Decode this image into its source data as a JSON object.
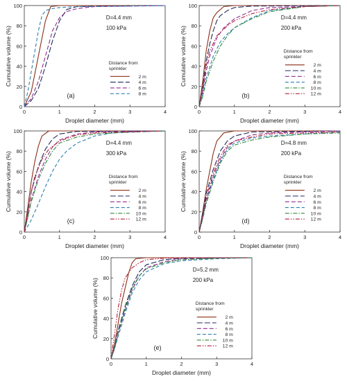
{
  "colors": {
    "2 m": "#8b2e16",
    "4 m": "#1f2a5c",
    "6 m": "#8e2a8c",
    "8 m": "#2a7fae",
    "10 m": "#2f8a3a",
    "12 m": "#b01d3a",
    "axis": "#333333"
  },
  "legend_title_lines": [
    "Distance from",
    "sprinkler"
  ],
  "chart_data": [
    {
      "type": "line",
      "panel": "(a)",
      "annotation_line1": "D=4.4 mm",
      "annotation_line2": "100 kPa",
      "xlabel": "Droplet diameter (mm)",
      "ylabel": "Cumulative volume (%)",
      "xlim": [
        0,
        4
      ],
      "ylim": [
        0,
        100
      ],
      "xticks": [
        "0",
        "1",
        "2",
        "3",
        "4"
      ],
      "yticks": [
        "0",
        "20",
        "40",
        "60",
        "80",
        "100"
      ],
      "legend_position": "lower-right",
      "series": [
        {
          "name": "2 m",
          "x": [
            0,
            0.2,
            0.4,
            0.6,
            0.75,
            1.0,
            4
          ],
          "y": [
            0,
            15,
            50,
            85,
            99,
            100,
            100
          ]
        },
        {
          "name": "4 m",
          "x": [
            0,
            0.2,
            0.4,
            0.6,
            0.8,
            1.0,
            1.2,
            1.5,
            4
          ],
          "y": [
            0,
            6,
            18,
            40,
            65,
            85,
            96,
            99,
            100
          ]
        },
        {
          "name": "6 m",
          "x": [
            0,
            0.2,
            0.4,
            0.6,
            0.8,
            1.0,
            1.2,
            1.5,
            2.0,
            4
          ],
          "y": [
            0,
            8,
            25,
            50,
            75,
            88,
            94,
            97,
            99,
            100
          ]
        },
        {
          "name": "8 m",
          "x": [
            0,
            0.1,
            0.25,
            0.4,
            0.5,
            0.6,
            0.8,
            1.0,
            1.5,
            4
          ],
          "y": [
            0,
            15,
            45,
            75,
            90,
            95,
            97,
            98,
            99,
            100
          ]
        }
      ]
    },
    {
      "type": "line",
      "panel": "(b)",
      "annotation_line1": "D=4.4 mm",
      "annotation_line2": "200 kPa",
      "xlabel": "Droplet diameter (mm)",
      "ylabel": "Cumulative volume (%)",
      "xlim": [
        0,
        4
      ],
      "ylim": [
        0,
        100
      ],
      "xticks": [
        "0",
        "1",
        "2",
        "3",
        "4"
      ],
      "yticks": [
        "0",
        "20",
        "40",
        "60",
        "80",
        "100"
      ],
      "legend_position": "lower-right",
      "series": [
        {
          "name": "2 m",
          "x": [
            0,
            0.1,
            0.2,
            0.3,
            0.4,
            0.5,
            0.7,
            1.0,
            4
          ],
          "y": [
            0,
            25,
            55,
            75,
            88,
            93,
            99,
            100,
            100
          ]
        },
        {
          "name": "4 m",
          "x": [
            0,
            0.1,
            0.2,
            0.3,
            0.4,
            0.5,
            0.6,
            0.8,
            1.0,
            1.5,
            4
          ],
          "y": [
            0,
            20,
            45,
            62,
            75,
            85,
            90,
            95,
            98,
            99.5,
            100
          ]
        },
        {
          "name": "6 m",
          "x": [
            0,
            0.1,
            0.2,
            0.3,
            0.5,
            0.7,
            1.0,
            1.5,
            2.0,
            4
          ],
          "y": [
            0,
            15,
            35,
            50,
            68,
            78,
            87,
            95,
            98,
            100
          ]
        },
        {
          "name": "8 m",
          "x": [
            0,
            0.1,
            0.2,
            0.4,
            0.6,
            0.8,
            1.0,
            1.5,
            2.0,
            3.0,
            4
          ],
          "y": [
            0,
            12,
            28,
            50,
            64,
            72,
            78,
            88,
            95,
            99,
            100
          ]
        },
        {
          "name": "10 m",
          "x": [
            0,
            0.1,
            0.2,
            0.4,
            0.6,
            0.8,
            1.0,
            1.5,
            2.0,
            3.0,
            4
          ],
          "y": [
            0,
            10,
            25,
            45,
            60,
            70,
            78,
            87,
            94,
            99,
            100
          ]
        },
        {
          "name": "12 m",
          "x": [
            0,
            0.1,
            0.2,
            0.3,
            0.5,
            0.8,
            1.0,
            1.5,
            2.0,
            3.0,
            4
          ],
          "y": [
            0,
            18,
            40,
            55,
            70,
            80,
            85,
            92,
            96,
            99,
            100
          ]
        }
      ]
    },
    {
      "type": "line",
      "panel": "(c)",
      "annotation_line1": "D=4.4 mm",
      "annotation_line2": "300 kPa",
      "xlabel": "Droplet diameter (mm)",
      "ylabel": "Cumulative volume (%)",
      "xlim": [
        0,
        4
      ],
      "ylim": [
        0,
        100
      ],
      "xticks": [
        "0",
        "1",
        "2",
        "3",
        "4"
      ],
      "yticks": [
        "0",
        "20",
        "40",
        "60",
        "80",
        "100"
      ],
      "legend_position": "lower-right",
      "series": [
        {
          "name": "2 m",
          "x": [
            0,
            0.1,
            0.2,
            0.3,
            0.4,
            0.5,
            0.7,
            4
          ],
          "y": [
            0,
            25,
            50,
            70,
            85,
            95,
            100,
            100
          ]
        },
        {
          "name": "4 m",
          "x": [
            0,
            0.1,
            0.2,
            0.4,
            0.6,
            0.8,
            1.0,
            1.5,
            4
          ],
          "y": [
            0,
            20,
            40,
            65,
            82,
            92,
            97,
            99.5,
            100
          ]
        },
        {
          "name": "6 m",
          "x": [
            0,
            0.1,
            0.2,
            0.4,
            0.6,
            0.8,
            1.0,
            1.5,
            2.0,
            4
          ],
          "y": [
            0,
            15,
            32,
            55,
            72,
            84,
            91,
            97,
            99,
            100
          ]
        },
        {
          "name": "8 m",
          "x": [
            0,
            0.2,
            0.4,
            0.6,
            0.8,
            1.0,
            1.2,
            1.5,
            2.0,
            2.5,
            4
          ],
          "y": [
            0,
            12,
            28,
            45,
            60,
            72,
            80,
            88,
            95,
            98,
            100
          ]
        },
        {
          "name": "10 m",
          "x": [
            0,
            0.1,
            0.2,
            0.4,
            0.6,
            0.8,
            1.0,
            1.5,
            2.0,
            3.0,
            4
          ],
          "y": [
            0,
            15,
            30,
            52,
            68,
            80,
            88,
            94,
            97,
            99,
            100
          ]
        },
        {
          "name": "12 m",
          "x": [
            0,
            0.1,
            0.2,
            0.3,
            0.5,
            0.7,
            1.0,
            1.5,
            2.0,
            4
          ],
          "y": [
            0,
            20,
            40,
            55,
            72,
            82,
            90,
            96,
            98,
            100
          ]
        }
      ]
    },
    {
      "type": "line",
      "panel": "(d)",
      "annotation_line1": "D=4.8 mm",
      "annotation_line2": "200 kPa",
      "xlabel": "Droplet diameter (mm)",
      "ylabel": "Cumulative volume (%)",
      "xlim": [
        0,
        4
      ],
      "ylim": [
        0,
        100
      ],
      "xticks": [
        "0",
        "1",
        "2",
        "3",
        "4"
      ],
      "yticks": [
        "0",
        "20",
        "40",
        "60",
        "80",
        "100"
      ],
      "legend_position": "lower-right",
      "series": [
        {
          "name": "2 m",
          "x": [
            0,
            0.1,
            0.2,
            0.3,
            0.4,
            0.5,
            0.7,
            1.0,
            4
          ],
          "y": [
            0,
            20,
            42,
            60,
            78,
            90,
            98,
            100,
            100
          ]
        },
        {
          "name": "4 m",
          "x": [
            0,
            0.1,
            0.2,
            0.4,
            0.6,
            0.8,
            1.0,
            1.5,
            4
          ],
          "y": [
            0,
            18,
            38,
            62,
            80,
            90,
            95,
            99,
            100
          ]
        },
        {
          "name": "6 m",
          "x": [
            0,
            0.1,
            0.2,
            0.4,
            0.6,
            0.8,
            1.0,
            1.5,
            2.0,
            4
          ],
          "y": [
            0,
            15,
            32,
            55,
            72,
            84,
            90,
            96,
            98,
            100
          ]
        },
        {
          "name": "8 m",
          "x": [
            0,
            0.1,
            0.2,
            0.4,
            0.6,
            0.8,
            1.0,
            1.5,
            2.0,
            3.0,
            4
          ],
          "y": [
            0,
            14,
            30,
            52,
            70,
            82,
            88,
            93,
            95,
            97,
            99
          ]
        },
        {
          "name": "10 m",
          "x": [
            0,
            0.1,
            0.2,
            0.4,
            0.6,
            0.8,
            1.0,
            1.5,
            2.0,
            3.0,
            4
          ],
          "y": [
            0,
            13,
            28,
            50,
            68,
            80,
            86,
            91,
            94,
            97,
            98
          ]
        },
        {
          "name": "12 m",
          "x": [
            0,
            0.1,
            0.2,
            0.4,
            0.6,
            0.8,
            1.0,
            1.5,
            2.0,
            4
          ],
          "y": [
            0,
            16,
            34,
            58,
            75,
            86,
            90,
            94,
            97,
            99
          ]
        }
      ]
    },
    {
      "type": "line",
      "panel": "(e)",
      "annotation_line1": "D=5.2 mm",
      "annotation_line2": "200 kPa",
      "xlabel": "Droplet diameter (mm)",
      "ylabel": "Cumulative volume (%)",
      "xlim": [
        0,
        4
      ],
      "ylim": [
        0,
        100
      ],
      "xticks": [
        "0",
        "1",
        "2",
        "3",
        "4"
      ],
      "yticks": [
        "0",
        "20",
        "40",
        "60",
        "80",
        "100"
      ],
      "legend_position": "lower-right",
      "series": [
        {
          "name": "2 m",
          "x": [
            0,
            0.1,
            0.2,
            0.3,
            0.4,
            0.5,
            0.6,
            0.7,
            1.0,
            4
          ],
          "y": [
            0,
            15,
            35,
            55,
            70,
            85,
            95,
            99,
            100,
            100
          ]
        },
        {
          "name": "4 m",
          "x": [
            0,
            0.1,
            0.2,
            0.4,
            0.6,
            0.8,
            1.0,
            1.5,
            2.0,
            4
          ],
          "y": [
            0,
            12,
            28,
            52,
            72,
            86,
            93,
            98,
            99.5,
            100
          ]
        },
        {
          "name": "6 m",
          "x": [
            0,
            0.1,
            0.2,
            0.4,
            0.6,
            0.8,
            1.0,
            1.5,
            2.0,
            4
          ],
          "y": [
            0,
            10,
            25,
            48,
            68,
            82,
            90,
            96,
            99,
            100
          ]
        },
        {
          "name": "8 m",
          "x": [
            0,
            0.1,
            0.2,
            0.4,
            0.6,
            0.8,
            1.0,
            1.5,
            2.0,
            3.0,
            4
          ],
          "y": [
            0,
            10,
            22,
            45,
            65,
            78,
            86,
            94,
            97,
            99,
            100
          ]
        },
        {
          "name": "10 m",
          "x": [
            0,
            0.1,
            0.2,
            0.4,
            0.6,
            0.8,
            1.0,
            1.5,
            2.0,
            3.0,
            4
          ],
          "y": [
            0,
            12,
            26,
            50,
            70,
            82,
            89,
            95,
            98,
            99.5,
            100
          ]
        },
        {
          "name": "12 m",
          "x": [
            0,
            0.1,
            0.2,
            0.3,
            0.4,
            0.6,
            0.8,
            1.0,
            1.5,
            2.0,
            4
          ],
          "y": [
            0,
            25,
            50,
            68,
            80,
            90,
            95,
            98,
            99.5,
            100,
            100
          ]
        }
      ]
    }
  ]
}
